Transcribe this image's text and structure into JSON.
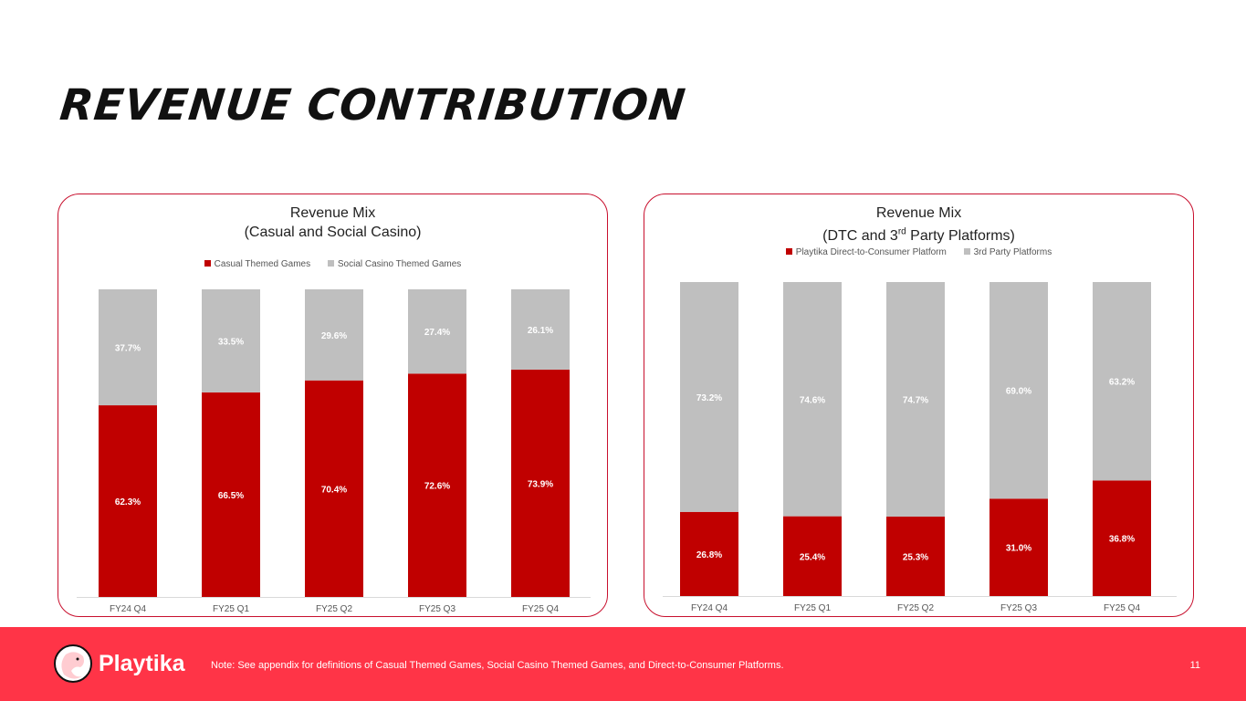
{
  "title": "REVENUE CONTRIBUTION",
  "footer": {
    "brand": "Playtika",
    "note": "Note:  See appendix for definitions of Casual Themed Games, Social Casino Themed Games, and Direct-to-Consumer Platforms.",
    "page": "11"
  },
  "colors": {
    "red": "#c00000",
    "gray": "#bfbfbf",
    "footer": "#ff3447"
  },
  "chart_data": [
    {
      "type": "bar",
      "stacked": true,
      "title_line1": "Revenue Mix",
      "title_line2": "(Casual and Social Casino)",
      "categories": [
        "FY24 Q4",
        "FY25 Q1",
        "FY25 Q2",
        "FY25 Q3",
        "FY25 Q4"
      ],
      "series": [
        {
          "name": "Casual Themed Games",
          "values": [
            62.3,
            66.5,
            70.4,
            72.6,
            73.9
          ],
          "labels": [
            "62.3%",
            "66.5%",
            "70.4%",
            "72.6%",
            "73.9%"
          ]
        },
        {
          "name": "Social Casino Themed Games",
          "values": [
            37.7,
            33.5,
            29.6,
            27.4,
            26.1
          ],
          "labels": [
            "37.7%",
            "33.5%",
            "29.6%",
            "27.4%",
            "26.1%"
          ]
        }
      ],
      "ylim": [
        0,
        100
      ],
      "legend": "top"
    },
    {
      "type": "bar",
      "stacked": true,
      "title_line1": "Revenue Mix",
      "title_line2": "(DTC and 3rd Party Platforms)",
      "categories": [
        "FY24 Q4",
        "FY25 Q1",
        "FY25 Q2",
        "FY25 Q3",
        "FY25 Q4"
      ],
      "series": [
        {
          "name": "Playtika Direct-to-Consumer Platform",
          "values": [
            26.8,
            25.4,
            25.3,
            31.0,
            36.8
          ],
          "labels": [
            "26.8%",
            "25.4%",
            "25.3%",
            "31.0%",
            "36.8%"
          ]
        },
        {
          "name": "3rd Party Platforms",
          "values": [
            73.2,
            74.6,
            74.7,
            69.0,
            63.2
          ],
          "labels": [
            "73.2%",
            "74.6%",
            "74.7%",
            "69.0%",
            "63.2%"
          ]
        }
      ],
      "ylim": [
        0,
        100
      ],
      "legend": "top"
    }
  ]
}
